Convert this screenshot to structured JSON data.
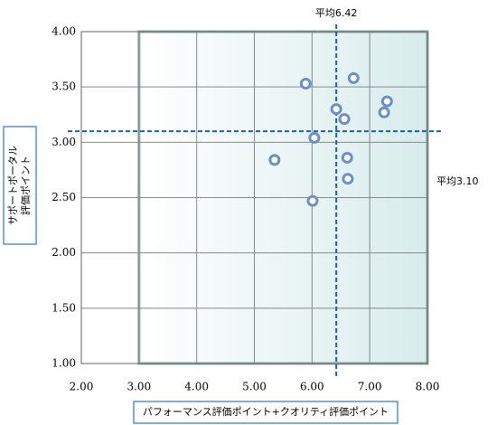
{
  "chart_data": {
    "type": "scatter",
    "xlabel": "パフォーマンス評価ポイント+クオリティ評価ポイント",
    "ylabel": [
      "サポートポータル",
      "評価ポイント"
    ],
    "xlim": [
      2,
      8
    ],
    "ylim": [
      1,
      4
    ],
    "xticks": [
      {
        "value": 2,
        "label": "2.00"
      },
      {
        "value": 3,
        "label": "3.00"
      },
      {
        "value": 4,
        "label": "4.00"
      },
      {
        "value": 5,
        "label": "5.00"
      },
      {
        "value": 6,
        "label": "6.00"
      },
      {
        "value": 7,
        "label": "7.00"
      },
      {
        "value": 8,
        "label": "8.00"
      }
    ],
    "yticks": [
      {
        "value": 1,
        "label": "1.00"
      },
      {
        "value": 1.5,
        "label": "1.50"
      },
      {
        "value": 2,
        "label": "2.00"
      },
      {
        "value": 2.5,
        "label": "2.50"
      },
      {
        "value": 3,
        "label": "3.00"
      },
      {
        "value": 3.5,
        "label": "3.50"
      },
      {
        "value": 4,
        "label": "4.00"
      }
    ],
    "grid": true,
    "shaded_region": {
      "x": [
        3,
        8
      ],
      "y": [
        1,
        4
      ]
    },
    "mean_lines": [
      {
        "axis": "x",
        "value": 6.42,
        "label": "平均6.42"
      },
      {
        "axis": "y",
        "value": 3.1,
        "label": "平均3.10"
      }
    ],
    "color": "#6f8fc4",
    "x": [
      5.89,
      6.72,
      7.3,
      7.25,
      6.42,
      6.56,
      6.04,
      5.35,
      6.61,
      6.62,
      6.01
    ],
    "values": [
      3.53,
      3.58,
      3.37,
      3.27,
      3.3,
      3.21,
      3.04,
      2.84,
      2.86,
      2.67,
      2.47
    ]
  }
}
